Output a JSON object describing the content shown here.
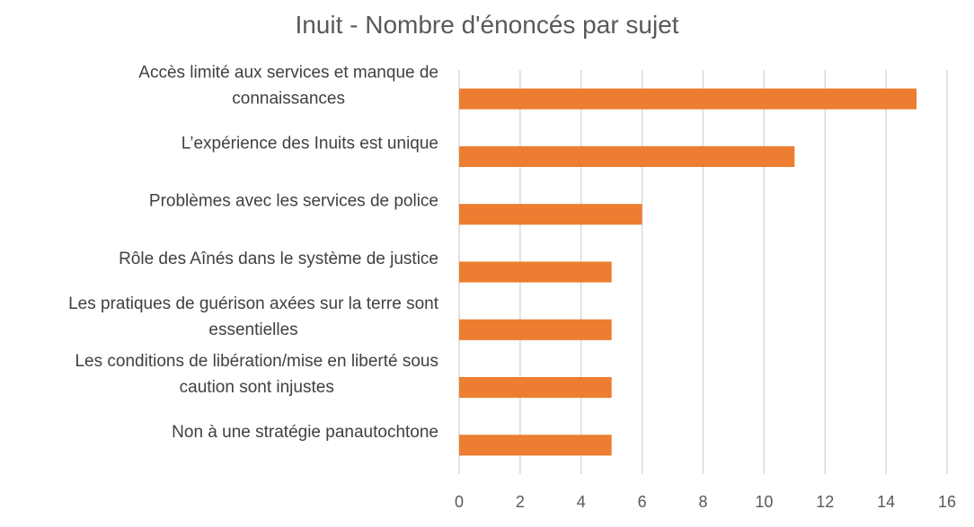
{
  "chart_data": {
    "type": "bar",
    "orientation": "horizontal",
    "title": "Inuit - Nombre d'énoncés par sujet",
    "xlabel": "",
    "ylabel": "",
    "categories": [
      [
        "Accès limité aux services et manque de",
        "connaissances"
      ],
      [
        "L’expérience des Inuits est unique"
      ],
      [
        "Problèmes avec les services de police"
      ],
      [
        "Rôle des Aînés dans le système de justice"
      ],
      [
        "Les pratiques de guérison axées sur la terre sont",
        "essentielles"
      ],
      [
        "Les conditions de libération/mise en liberté sous",
        "caution sont injustes"
      ],
      [
        "Non à une stratégie panautochtone"
      ]
    ],
    "values": [
      15,
      11,
      6,
      5,
      5,
      5,
      5
    ],
    "xlim": [
      0,
      16
    ],
    "xticks": [
      "0",
      "2",
      "4",
      "6",
      "8",
      "10",
      "12",
      "14",
      "16"
    ],
    "grid": "vertical",
    "legend": "none",
    "colors": {
      "bar": "#ED7D31",
      "grid": "#D9D9D9"
    }
  }
}
